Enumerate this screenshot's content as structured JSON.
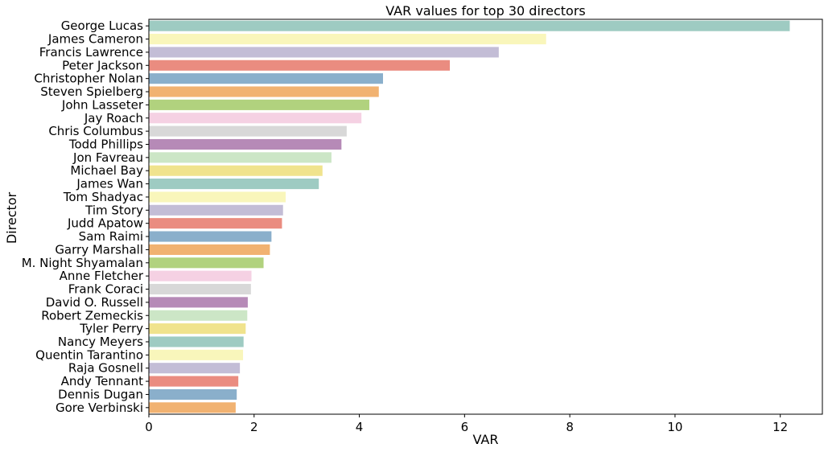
{
  "chart_data": {
    "type": "bar",
    "orientation": "horizontal",
    "title": "VAR values for top 30 directors",
    "xlabel": "VAR",
    "ylabel": "Director",
    "xlim": [
      0,
      12.8
    ],
    "xticks": [
      "0",
      "2",
      "4",
      "6",
      "8",
      "10",
      "12"
    ],
    "grid": false,
    "categories": [
      "George Lucas",
      "James Cameron",
      "Francis Lawrence",
      "Peter Jackson",
      "Christopher Nolan",
      "Steven Spielberg",
      "John Lasseter",
      "Jay Roach",
      "Chris Columbus",
      "Todd Phillips",
      "Jon Favreau",
      "Michael Bay",
      "James Wan",
      "Tom Shadyac",
      "Tim Story",
      "Judd Apatow",
      "Sam Raimi",
      "Garry Marshall",
      "M. Night Shyamalan",
      "Anne Fletcher",
      "Frank Coraci",
      "David O. Russell",
      "Robert Zemeckis",
      "Tyler Perry",
      "Nancy Meyers",
      "Quentin Tarantino",
      "Raja Gosnell",
      "Andy Tennant",
      "Dennis Dugan",
      "Gore Verbinski"
    ],
    "values": [
      12.18,
      7.55,
      6.65,
      5.72,
      4.45,
      4.37,
      4.19,
      4.04,
      3.76,
      3.66,
      3.47,
      3.3,
      3.23,
      2.6,
      2.55,
      2.53,
      2.33,
      2.3,
      2.18,
      1.95,
      1.94,
      1.88,
      1.87,
      1.84,
      1.8,
      1.79,
      1.73,
      1.7,
      1.67,
      1.65
    ],
    "colors": [
      "#9ecbc2",
      "#f9f6bb",
      "#c3bdd6",
      "#ea8c80",
      "#8aafcb",
      "#f1b271",
      "#b1d27e",
      "#f5d1e3",
      "#d8d8d8",
      "#b68ab7",
      "#cce6c6",
      "#f0e38d"
    ]
  }
}
